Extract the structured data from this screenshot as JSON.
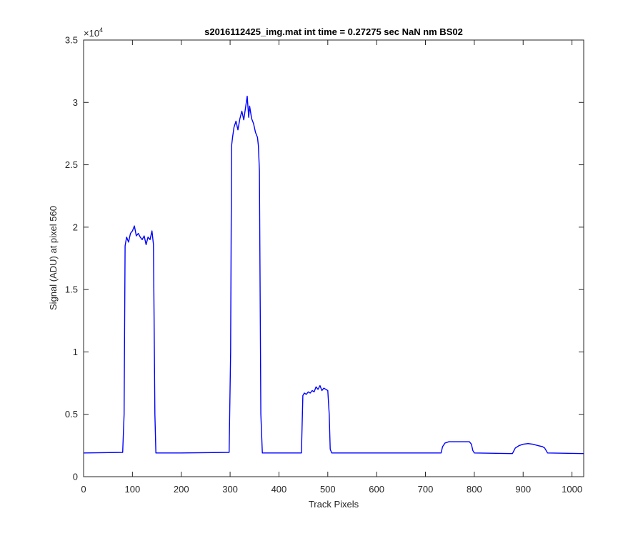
{
  "chart_data": {
    "type": "line",
    "title": "s2016112425_img.mat int time = 0.27275 sec  NaN nm BS02",
    "xlabel": "Track Pixels",
    "ylabel": "Signal (ADU) at pixel 560",
    "xlim": [
      0,
      1024
    ],
    "ylim": [
      0,
      35000
    ],
    "x_ticks": [
      0,
      100,
      200,
      300,
      400,
      500,
      600,
      700,
      800,
      900,
      1000
    ],
    "y_ticks": [
      0,
      5000,
      10000,
      15000,
      20000,
      25000,
      30000,
      35000
    ],
    "y_tick_labels": [
      "0",
      "0.5",
      "1",
      "1.5",
      "2",
      "2.5",
      "3",
      "3.5"
    ],
    "y_exponent_base": "×10",
    "y_exponent_power": "4",
    "grid": false,
    "series": [
      {
        "color": "#0000ff",
        "x": [
          0,
          80,
          83,
          85,
          88,
          92,
          96,
          100,
          104,
          108,
          112,
          116,
          120,
          124,
          128,
          132,
          136,
          140,
          143,
          146,
          148,
          200,
          298,
          301,
          303,
          305,
          308,
          312,
          316,
          320,
          324,
          328,
          332,
          335,
          338,
          340,
          344,
          348,
          352,
          356,
          358,
          360,
          363,
          366,
          400,
          446,
          449,
          452,
          456,
          460,
          464,
          468,
          472,
          476,
          480,
          484,
          488,
          492,
          496,
          500,
          503,
          505,
          508,
          600,
          732,
          735,
          740,
          748,
          760,
          770,
          780,
          790,
          794,
          797,
          800,
          878,
          880,
          884,
          892,
          900,
          910,
          920,
          930,
          940,
          944,
          947,
          950,
          1024
        ],
        "y": [
          1900,
          1950,
          5000,
          18500,
          19200,
          18800,
          19500,
          19700,
          20100,
          19300,
          19500,
          19200,
          19000,
          19300,
          18600,
          19200,
          19000,
          19700,
          18600,
          5000,
          1900,
          1900,
          1950,
          10000,
          26500,
          27200,
          28000,
          28500,
          27800,
          28700,
          29300,
          28600,
          29700,
          30500,
          28800,
          29700,
          28700,
          28300,
          27600,
          27200,
          26500,
          24500,
          5000,
          1900,
          1900,
          1900,
          6500,
          6700,
          6600,
          6800,
          6700,
          6900,
          6800,
          7200,
          7000,
          7300,
          6900,
          7100,
          7000,
          6900,
          5000,
          2200,
          1900,
          1900,
          1900,
          2400,
          2700,
          2800,
          2800,
          2800,
          2800,
          2800,
          2600,
          2100,
          1900,
          1850,
          2000,
          2300,
          2500,
          2600,
          2650,
          2600,
          2500,
          2400,
          2300,
          2100,
          1900,
          1850
        ]
      }
    ]
  }
}
